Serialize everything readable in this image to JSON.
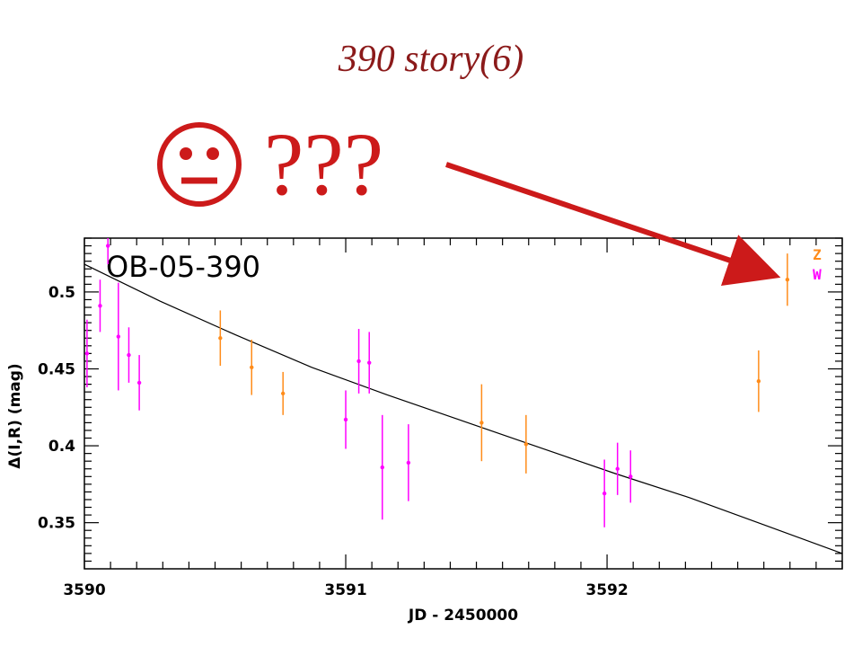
{
  "slide": {
    "title": "390 story(6)",
    "reaction_face": "neutral-face-icon",
    "reaction_text": "???",
    "arrow_color": "#cc1a1a"
  },
  "chart_data": {
    "type": "scatter",
    "title": "OB-05-390",
    "xlabel": "JD - 2450000",
    "ylabel": "Δ(I,R) (mag)",
    "xlim": [
      3590,
      3592.9
    ],
    "ylim": [
      0.32,
      0.535
    ],
    "x_ticks": [
      3590,
      3591,
      3592
    ],
    "x_tick_labels": [
      "3590",
      "3591",
      "3592"
    ],
    "y_ticks": [
      0.35,
      0.4,
      0.45,
      0.5
    ],
    "y_tick_labels": [
      "0.35",
      "0.4",
      "0.45",
      "0.5"
    ],
    "legend": {
      "placement": "top-right"
    },
    "series": [
      {
        "name": "W",
        "color": "#ff00ff",
        "points": [
          {
            "x": 3590.01,
            "y": 0.46,
            "err": 0.022
          },
          {
            "x": 3590.06,
            "y": 0.491,
            "err": 0.017
          },
          {
            "x": 3590.09,
            "y": 0.53,
            "err": 0.012
          },
          {
            "x": 3590.13,
            "y": 0.471,
            "err": 0.035
          },
          {
            "x": 3590.17,
            "y": 0.459,
            "err": 0.018
          },
          {
            "x": 3590.21,
            "y": 0.441,
            "err": 0.018
          },
          {
            "x": 3591.0,
            "y": 0.417,
            "err": 0.019
          },
          {
            "x": 3591.05,
            "y": 0.455,
            "err": 0.021
          },
          {
            "x": 3591.09,
            "y": 0.454,
            "err": 0.02
          },
          {
            "x": 3591.14,
            "y": 0.386,
            "err": 0.034
          },
          {
            "x": 3591.24,
            "y": 0.389,
            "err": 0.025
          },
          {
            "x": 3591.99,
            "y": 0.369,
            "err": 0.022
          },
          {
            "x": 3592.04,
            "y": 0.385,
            "err": 0.017
          },
          {
            "x": 3592.09,
            "y": 0.38,
            "err": 0.017
          }
        ]
      },
      {
        "name": "Z",
        "color": "#ff8c1a",
        "points": [
          {
            "x": 3590.52,
            "y": 0.47,
            "err": 0.018
          },
          {
            "x": 3590.64,
            "y": 0.451,
            "err": 0.018
          },
          {
            "x": 3590.76,
            "y": 0.434,
            "err": 0.014
          },
          {
            "x": 3591.52,
            "y": 0.415,
            "err": 0.025
          },
          {
            "x": 3591.69,
            "y": 0.401,
            "err": 0.019
          },
          {
            "x": 3592.58,
            "y": 0.442,
            "err": 0.02
          },
          {
            "x": 3592.69,
            "y": 0.508,
            "err": 0.017
          }
        ]
      }
    ],
    "model_curve": {
      "color": "#000000",
      "x": [
        3590,
        3590.29,
        3590.58,
        3590.87,
        3591.16,
        3591.45,
        3591.74,
        3592.03,
        3592.32,
        3592.61,
        3592.9
      ],
      "y": [
        0.518,
        0.494,
        0.472,
        0.451,
        0.433,
        0.416,
        0.399,
        0.382,
        0.366,
        0.348,
        0.33
      ]
    }
  }
}
